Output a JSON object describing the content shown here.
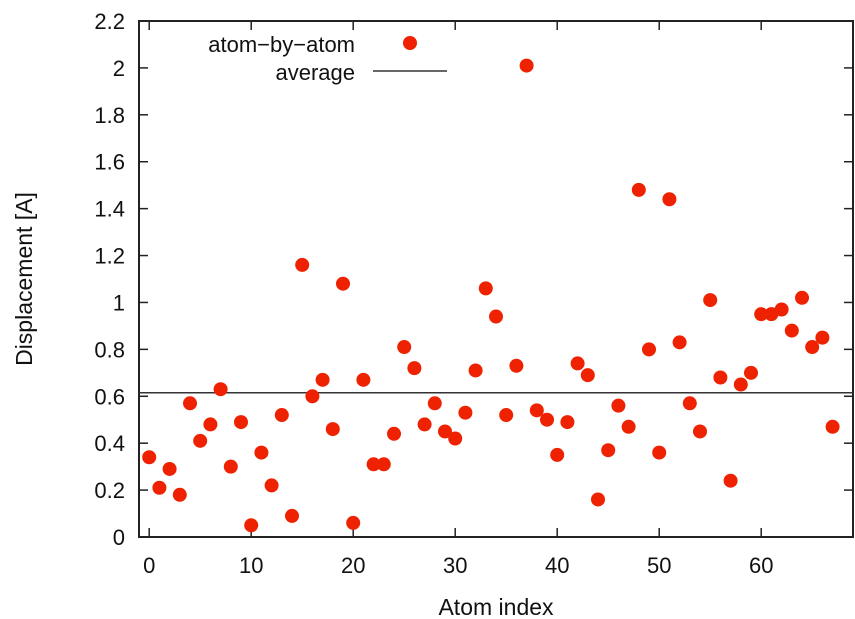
{
  "chart_data": {
    "type": "scatter",
    "title": "",
    "xlabel": "Atom index",
    "ylabel": "Displacement [A]",
    "xlim": [
      -1,
      69
    ],
    "ylim": [
      0,
      2.2
    ],
    "xticks": [
      0,
      10,
      20,
      30,
      40,
      50,
      60
    ],
    "yticks": [
      0,
      0.2,
      0.4,
      0.6,
      0.8,
      1,
      1.2,
      1.4,
      1.6,
      1.8,
      2,
      2.2
    ],
    "xtick_labels": [
      "0",
      "10",
      "20",
      "30",
      "40",
      "50",
      "60"
    ],
    "ytick_labels": [
      "0",
      "0.2",
      "0.4",
      "0.6",
      "0.8",
      "1",
      "1.2",
      "1.4",
      "1.6",
      "1.8",
      "2",
      "2.2"
    ],
    "grid": false,
    "legend_position": "top-left",
    "series": [
      {
        "name": "atom−by−atom",
        "kind": "points",
        "color": "#ee2200",
        "x": [
          0,
          1,
          2,
          3,
          4,
          5,
          6,
          7,
          8,
          9,
          10,
          11,
          12,
          13,
          14,
          15,
          16,
          17,
          18,
          19,
          20,
          21,
          22,
          23,
          24,
          25,
          26,
          27,
          28,
          29,
          30,
          31,
          32,
          33,
          34,
          35,
          36,
          37,
          38,
          39,
          40,
          41,
          42,
          43,
          44,
          45,
          46,
          47,
          48,
          49,
          50,
          51,
          52,
          53,
          54,
          55,
          56,
          57,
          58,
          59,
          60,
          61,
          62,
          63,
          64,
          65,
          66,
          67
        ],
        "y": [
          0.34,
          0.21,
          0.29,
          0.18,
          0.57,
          0.41,
          0.48,
          0.63,
          0.3,
          0.49,
          0.05,
          0.36,
          0.22,
          0.52,
          0.09,
          1.16,
          0.6,
          0.67,
          0.46,
          1.08,
          0.06,
          0.67,
          0.31,
          0.31,
          0.44,
          0.81,
          0.72,
          0.48,
          0.57,
          0.45,
          0.42,
          0.53,
          0.71,
          1.06,
          0.94,
          0.52,
          0.73,
          2.01,
          0.54,
          0.5,
          0.35,
          0.49,
          0.74,
          0.69,
          0.16,
          0.37,
          0.56,
          0.47,
          1.48,
          0.8,
          0.36,
          1.44,
          0.83,
          0.57,
          0.45,
          1.01,
          0.68,
          0.24,
          0.65,
          0.7,
          0.95,
          0.95,
          0.97,
          0.88,
          1.02,
          0.81,
          0.85,
          0.47
        ]
      },
      {
        "name": "average",
        "kind": "hline",
        "color": "#333333",
        "y": 0.615
      }
    ]
  }
}
